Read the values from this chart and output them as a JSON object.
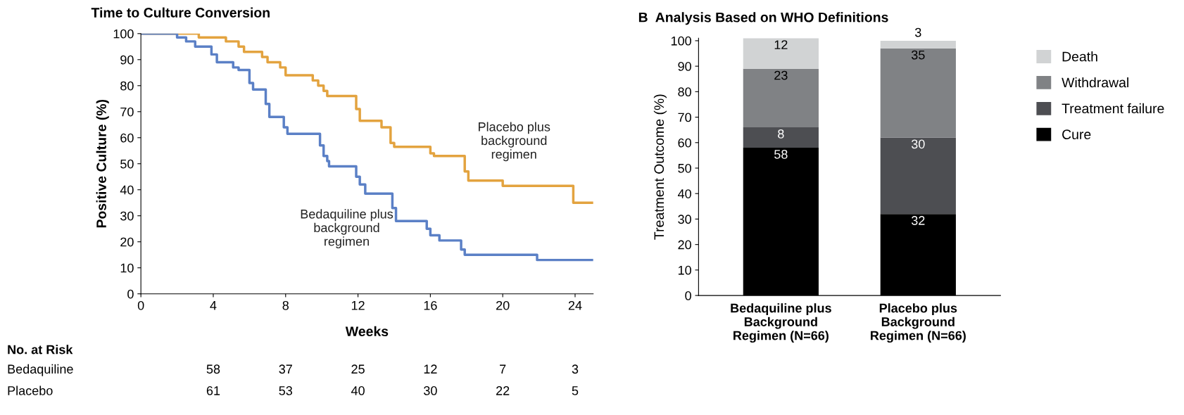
{
  "chart_data": [
    {
      "type": "step",
      "title": "Time to Culture Conversion",
      "xlabel": "Weeks",
      "ylabel": "Positive Culture (%)",
      "xlim": [
        0,
        25
      ],
      "xticks": [
        0,
        4,
        8,
        12,
        16,
        20,
        24
      ],
      "ylim": [
        0,
        100
      ],
      "yticks": [
        0,
        10,
        20,
        30,
        40,
        50,
        60,
        70,
        80,
        90,
        100
      ],
      "grid": false,
      "series": [
        {
          "name": "Placebo plus\nbackground\nregimen",
          "color": "#e3a33f",
          "x": [
            0,
            3.2,
            3.3,
            4.7,
            5.4,
            5.7,
            6.7,
            7.0,
            7.7,
            8.0,
            9.5,
            9.8,
            10.1,
            10.3,
            11.9,
            12.1,
            13.3,
            13.8,
            14.0,
            16.0,
            16.2,
            17.9,
            18.1,
            20.0,
            23.9,
            25
          ],
          "values": [
            100,
            98.5,
            98.5,
            97,
            95,
            93,
            91,
            89,
            87,
            84,
            82,
            80,
            78,
            76,
            71,
            66.5,
            64,
            58,
            56.5,
            54,
            53,
            47,
            43.5,
            41.5,
            35,
            35
          ]
        },
        {
          "name": "Bedaquiline plus\nbackground\nregimen",
          "color": "#5b80c6",
          "x": [
            0,
            2.0,
            2.5,
            3.0,
            3.9,
            4.2,
            5.1,
            5.4,
            6.0,
            6.2,
            6.9,
            7.1,
            7.9,
            8.1,
            9.9,
            10.1,
            10.3,
            10.4,
            11.9,
            12.1,
            12.4,
            13.9,
            14.1,
            15.8,
            16.0,
            16.5,
            17.7,
            17.9,
            21.9,
            25
          ],
          "values": [
            100,
            98.5,
            97,
            95,
            92,
            89,
            87,
            86,
            81,
            78.5,
            73,
            68,
            64,
            61.5,
            57,
            53,
            51,
            49,
            45,
            42,
            38.5,
            33,
            28,
            25,
            22.5,
            20.5,
            17,
            15,
            13,
            13
          ]
        }
      ],
      "annotations": [
        "No. at Risk",
        "Bedaquiline",
        "58",
        "37",
        "25",
        "12",
        "7",
        "3",
        "Placebo",
        "61",
        "53",
        "40",
        "30",
        "22",
        "5"
      ]
    },
    {
      "type": "bar",
      "stacked": true,
      "title": "B  Analysis Based on WHO Definitions",
      "ylabel": "Treatment Outcome (%)",
      "categories": [
        "Bedaquiline plus\nBackground\nRegimen (N=66)",
        "Placebo plus\nBackground\nRegimen (N=66)"
      ],
      "ylim": [
        0,
        101
      ],
      "yticks": [
        0,
        10,
        20,
        30,
        40,
        50,
        60,
        70,
        80,
        90,
        100
      ],
      "grid": false,
      "legend": "right",
      "data_labels": true,
      "series": [
        {
          "name": "Cure",
          "color": "#000000",
          "values": [
            58,
            32
          ]
        },
        {
          "name": "Treatment failure",
          "color": "#4d4e52",
          "values": [
            8,
            30
          ]
        },
        {
          "name": "Withdrawal",
          "color": "#808285",
          "values": [
            23,
            35
          ]
        },
        {
          "name": "Death",
          "color": "#d1d3d4",
          "values": [
            12,
            3
          ]
        }
      ]
    }
  ]
}
